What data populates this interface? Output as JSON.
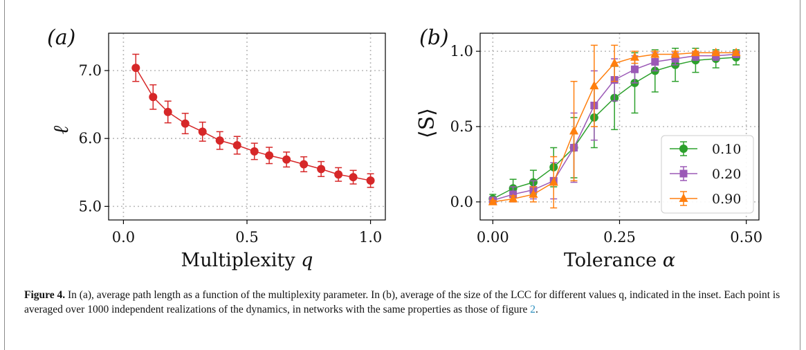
{
  "figure": {
    "caption_label": "Figure 4.",
    "caption_part1": "In (a), average path length as a function of the multiplexity parameter. In (b), average of the size of the LCC for different values q, indicated in the inset. Each point is averaged over 1000 independent realizations of the dynamics, in networks with the same properties as those of figure ",
    "caption_ref": "2",
    "caption_end": "."
  },
  "chart_data": [
    {
      "panel_label": "(a)",
      "type": "line",
      "xlabel": "Multiplexity q",
      "ylabel": "ℓ",
      "xlim": [
        -0.06,
        1.06
      ],
      "ylim": [
        4.8,
        7.55
      ],
      "xticks": [
        0.0,
        0.5,
        1.0
      ],
      "xtick_labels": [
        "0.0",
        "0.5",
        "1.0"
      ],
      "yticks": [
        5.0,
        6.0,
        7.0
      ],
      "ytick_labels": [
        "5.0",
        "6.0",
        "7.0"
      ],
      "grid": true,
      "series": [
        {
          "color": "#d62728",
          "marker": "circle",
          "x": [
            0.05,
            0.12,
            0.18,
            0.25,
            0.32,
            0.39,
            0.46,
            0.53,
            0.59,
            0.66,
            0.73,
            0.8,
            0.87,
            0.93,
            1.0
          ],
          "y": [
            7.04,
            6.61,
            6.39,
            6.22,
            6.1,
            5.97,
            5.9,
            5.81,
            5.75,
            5.69,
            5.62,
            5.55,
            5.47,
            5.43,
            5.38
          ],
          "err": [
            0.2,
            0.18,
            0.16,
            0.15,
            0.14,
            0.13,
            0.13,
            0.12,
            0.12,
            0.11,
            0.11,
            0.11,
            0.1,
            0.1,
            0.1
          ]
        }
      ]
    },
    {
      "panel_label": "(b)",
      "type": "line",
      "xlabel": "Tolerance α",
      "ylabel": "⟨S⟩",
      "xlim": [
        -0.025,
        0.525
      ],
      "ylim": [
        -0.12,
        1.12
      ],
      "xticks": [
        0.0,
        0.25,
        0.5
      ],
      "xtick_labels": [
        "0.00",
        "0.25",
        "0.50"
      ],
      "yticks": [
        0.0,
        0.5,
        1.0
      ],
      "ytick_labels": [
        "0.0",
        "0.5",
        "1.0"
      ],
      "grid": true,
      "legend_position": "lower-right",
      "series": [
        {
          "name": "0.10",
          "color": "#2ca02c",
          "marker": "circle",
          "x": [
            0.0,
            0.04,
            0.08,
            0.12,
            0.16,
            0.2,
            0.24,
            0.28,
            0.32,
            0.36,
            0.4,
            0.44,
            0.48
          ],
          "y": [
            0.02,
            0.09,
            0.13,
            0.23,
            0.36,
            0.56,
            0.69,
            0.79,
            0.87,
            0.91,
            0.94,
            0.95,
            0.96
          ],
          "err": [
            0.03,
            0.06,
            0.08,
            0.13,
            0.2,
            0.2,
            0.21,
            0.2,
            0.14,
            0.11,
            0.08,
            0.06,
            0.05
          ]
        },
        {
          "name": "0.20",
          "color": "#9b59b6",
          "marker": "square",
          "x": [
            0.0,
            0.04,
            0.08,
            0.12,
            0.16,
            0.2,
            0.24,
            0.28,
            0.32,
            0.36,
            0.4,
            0.44,
            0.48
          ],
          "y": [
            0.01,
            0.05,
            0.08,
            0.14,
            0.36,
            0.64,
            0.81,
            0.88,
            0.93,
            0.95,
            0.97,
            0.97,
            0.98
          ],
          "err": [
            0.02,
            0.05,
            0.06,
            0.12,
            0.23,
            0.23,
            0.14,
            0.09,
            0.06,
            0.04,
            0.03,
            0.03,
            0.02
          ]
        },
        {
          "name": "0.90",
          "color": "#ff7f0e",
          "marker": "triangle",
          "x": [
            0.0,
            0.04,
            0.08,
            0.12,
            0.16,
            0.2,
            0.24,
            0.28,
            0.32,
            0.36,
            0.4,
            0.44,
            0.48
          ],
          "y": [
            0.0,
            0.02,
            0.05,
            0.13,
            0.47,
            0.77,
            0.92,
            0.96,
            0.98,
            0.98,
            0.99,
            0.99,
            0.99
          ],
          "err": [
            0.01,
            0.02,
            0.05,
            0.17,
            0.33,
            0.27,
            0.12,
            0.04,
            0.02,
            0.02,
            0.01,
            0.01,
            0.01
          ]
        }
      ]
    }
  ]
}
